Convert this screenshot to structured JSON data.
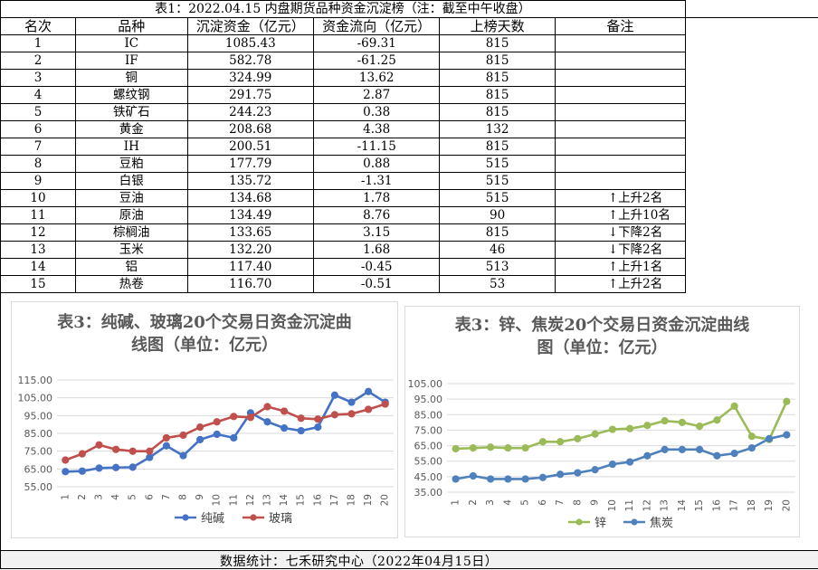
{
  "table": {
    "title": "表1：2022.04.15 内盘期货品种资金沉淀榜（注：截至中午收盘）",
    "headers": [
      "名次",
      "品种",
      "沉淀资金（亿元）",
      "资金流向（亿元）",
      "上榜天数",
      "备注"
    ],
    "rows": [
      {
        "rank": "1",
        "name": "IC",
        "capital": "1085.43",
        "flow": "-69.31",
        "days": "815",
        "note": ""
      },
      {
        "rank": "2",
        "name": "IF",
        "capital": "582.78",
        "flow": "-61.25",
        "days": "815",
        "note": ""
      },
      {
        "rank": "3",
        "name": "铜",
        "capital": "324.99",
        "flow": "13.62",
        "days": "815",
        "note": ""
      },
      {
        "rank": "4",
        "name": "螺纹钢",
        "capital": "291.75",
        "flow": "2.87",
        "days": "815",
        "note": ""
      },
      {
        "rank": "5",
        "name": "铁矿石",
        "capital": "244.23",
        "flow": "0.38",
        "days": "815",
        "note": ""
      },
      {
        "rank": "6",
        "name": "黄金",
        "capital": "208.68",
        "flow": "4.38",
        "days": "132",
        "note": ""
      },
      {
        "rank": "7",
        "name": "IH",
        "capital": "200.51",
        "flow": "-11.15",
        "days": "815",
        "note": ""
      },
      {
        "rank": "8",
        "name": "豆粕",
        "capital": "177.79",
        "flow": "0.88",
        "days": "515",
        "note": ""
      },
      {
        "rank": "9",
        "name": "白银",
        "capital": "135.72",
        "flow": "-1.31",
        "days": "515",
        "note": ""
      },
      {
        "rank": "10",
        "name": "豆油",
        "capital": "134.68",
        "flow": "1.78",
        "days": "515",
        "note": "↑上升2名"
      },
      {
        "rank": "11",
        "name": "原油",
        "capital": "134.49",
        "flow": "8.76",
        "days": "90",
        "note": "↑上升10名"
      },
      {
        "rank": "12",
        "name": "棕榈油",
        "capital": "133.65",
        "flow": "3.15",
        "days": "815",
        "note": "↓下降2名"
      },
      {
        "rank": "13",
        "name": "玉米",
        "capital": "132.20",
        "flow": "1.68",
        "days": "46",
        "note": "↓下降2名"
      },
      {
        "rank": "14",
        "name": "铝",
        "capital": "117.40",
        "flow": "-0.45",
        "days": "513",
        "note": "↑上升1名"
      },
      {
        "rank": "15",
        "name": "热卷",
        "capital": "116.70",
        "flow": "-0.51",
        "days": "53",
        "note": "↑上升2名"
      }
    ]
  },
  "footer": "数据统计：七禾研究中心（2022年04月15日）",
  "chart_data": [
    {
      "type": "line",
      "title": "表3：纯碱、玻璃20个交易日资金沉淀曲线图（单位：亿元）",
      "title_lines": [
        "表3：纯碱、玻璃20个交易日资金沉淀曲",
        "线图（单位：亿元）"
      ],
      "x": [
        "1",
        "2",
        "3",
        "4",
        "5",
        "6",
        "7",
        "8",
        "9",
        "10",
        "11",
        "12",
        "13",
        "14",
        "15",
        "16",
        "17",
        "18",
        "19",
        "20"
      ],
      "ylim": [
        55,
        115
      ],
      "yticks": [
        "55.00",
        "65.00",
        "75.00",
        "85.00",
        "95.00",
        "105.00",
        "115.00"
      ],
      "grid": true,
      "legend": "bottom",
      "series": [
        {
          "name": "纯碱",
          "color": "#4472c4",
          "values": [
            63.5,
            63.8,
            65.5,
            65.8,
            66.0,
            71.5,
            78.0,
            72.5,
            81.5,
            84.5,
            82.5,
            96.5,
            91.5,
            88.0,
            86.5,
            88.5,
            106.5,
            102.5,
            108.5,
            102.5
          ]
        },
        {
          "name": "玻璃",
          "color": "#c0504d",
          "values": [
            70.0,
            73.5,
            78.5,
            76.0,
            75.0,
            75.0,
            82.5,
            84.0,
            88.5,
            91.5,
            94.5,
            94.0,
            100.0,
            97.5,
            93.5,
            93.0,
            95.5,
            96.0,
            98.5,
            101.5
          ]
        }
      ]
    },
    {
      "type": "line",
      "title": "表3：锌、焦炭20个交易日资金沉淀曲线图（单位：亿元）",
      "title_lines": [
        "表3：锌、焦炭20个交易日资金沉淀曲线",
        "图（单位：亿元）"
      ],
      "x": [
        "1",
        "2",
        "3",
        "4",
        "5",
        "6",
        "7",
        "8",
        "9",
        "10",
        "11",
        "12",
        "13",
        "14",
        "15",
        "16",
        "17",
        "18",
        "19",
        "20"
      ],
      "ylim": [
        35,
        105
      ],
      "yticks": [
        "35.00",
        "45.00",
        "55.00",
        "65.00",
        "75.00",
        "85.00",
        "95.00",
        "105.00"
      ],
      "grid": true,
      "legend": "bottom",
      "series": [
        {
          "name": "锌",
          "color": "#9bbb59",
          "values": [
            63.0,
            63.5,
            64.0,
            63.5,
            63.5,
            67.5,
            67.5,
            69.5,
            72.5,
            75.5,
            76.0,
            78.0,
            81.0,
            80.0,
            77.5,
            81.5,
            90.5,
            71.0,
            69.0,
            93.5
          ]
        },
        {
          "name": "焦炭",
          "color": "#4f81bd",
          "values": [
            43.5,
            45.5,
            43.5,
            43.5,
            43.5,
            44.5,
            46.5,
            47.5,
            49.5,
            53.0,
            54.5,
            58.5,
            62.5,
            62.5,
            62.5,
            58.5,
            60.0,
            63.5,
            69.5,
            72.0
          ]
        }
      ]
    }
  ]
}
